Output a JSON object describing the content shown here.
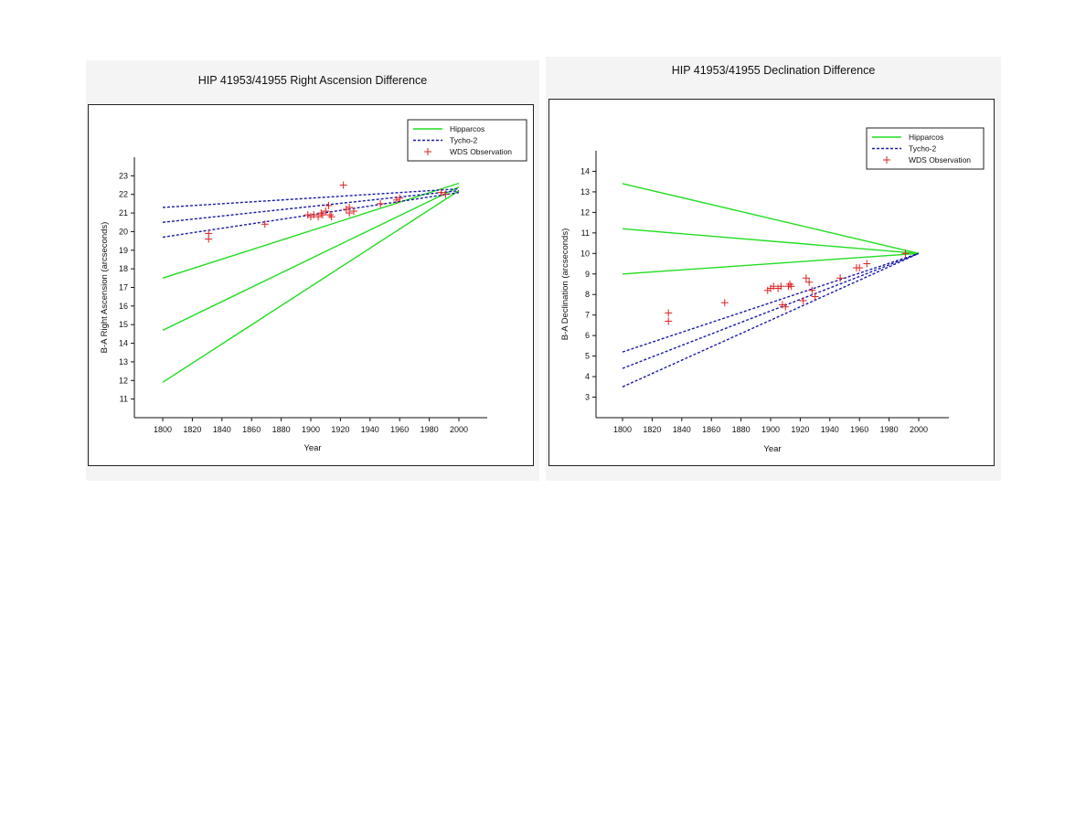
{
  "chart_data": [
    {
      "type": "line",
      "title": "HIP 41953/41955 Right Ascension Difference",
      "xlabel": "Year",
      "ylabel": "B-A Right Ascension (arcseconds)",
      "xlim": [
        1780,
        2020
      ],
      "ylim": [
        10,
        24
      ],
      "xticks": [
        1800,
        1820,
        1840,
        1860,
        1880,
        1900,
        1920,
        1940,
        1960,
        1980,
        2000
      ],
      "yticks": [
        11,
        12,
        13,
        14,
        15,
        16,
        17,
        18,
        19,
        20,
        21,
        22,
        23
      ],
      "legend": {
        "placement": "top-right",
        "entries": [
          "Hipparcos",
          "Tycho-2",
          "WDS Observation"
        ]
      },
      "grid": false,
      "series": [
        {
          "name": "Hipparcos",
          "style": "solid",
          "color": "#22dd22",
          "lines": [
            {
              "x": [
                1800,
                2000
              ],
              "y": [
                17.5,
                22.6
              ]
            },
            {
              "x": [
                1800,
                2000
              ],
              "y": [
                14.7,
                22.4
              ]
            },
            {
              "x": [
                1800,
                2000
              ],
              "y": [
                11.9,
                22.2
              ]
            }
          ]
        },
        {
          "name": "Tycho-2",
          "style": "dashed",
          "color": "#1a1aa8",
          "lines": [
            {
              "x": [
                1800,
                2000
              ],
              "y": [
                21.3,
                22.3
              ]
            },
            {
              "x": [
                1800,
                2000
              ],
              "y": [
                20.5,
                22.2
              ]
            },
            {
              "x": [
                1800,
                2000
              ],
              "y": [
                19.7,
                22.1
              ]
            }
          ]
        },
        {
          "name": "WDS Observation",
          "style": "marker",
          "color": "#dd2222",
          "points": [
            [
              1831,
              19.9
            ],
            [
              1831,
              19.6
            ],
            [
              1869,
              20.4
            ],
            [
              1898,
              20.9
            ],
            [
              1900,
              20.8
            ],
            [
              1902,
              20.9
            ],
            [
              1905,
              20.8
            ],
            [
              1907,
              21.0
            ],
            [
              1908,
              20.9
            ],
            [
              1910,
              21.1
            ],
            [
              1912,
              21.4
            ],
            [
              1913,
              20.9
            ],
            [
              1914,
              20.8
            ],
            [
              1922,
              22.5
            ],
            [
              1924,
              21.2
            ],
            [
              1926,
              21.0
            ],
            [
              1926,
              21.3
            ],
            [
              1929,
              21.1
            ],
            [
              1947,
              21.5
            ],
            [
              1958,
              21.7
            ],
            [
              1960,
              21.8
            ],
            [
              1988,
              22.1
            ],
            [
              1991,
              22.0
            ]
          ]
        }
      ]
    },
    {
      "type": "line",
      "title": "HIP 41953/41955 Declination Difference",
      "xlabel": "Year",
      "ylabel": "B-A Declination (arcseconds)",
      "xlim": [
        1780,
        2020
      ],
      "ylim": [
        2,
        15
      ],
      "xticks": [
        1800,
        1820,
        1840,
        1860,
        1880,
        1900,
        1920,
        1940,
        1960,
        1980,
        2000
      ],
      "yticks": [
        3,
        4,
        5,
        6,
        7,
        8,
        9,
        10,
        11,
        12,
        13,
        14
      ],
      "legend": {
        "placement": "top-right",
        "entries": [
          "Hipparcos",
          "Tycho-2",
          "WDS Observation"
        ]
      },
      "grid": false,
      "series": [
        {
          "name": "Hipparcos",
          "style": "solid",
          "color": "#22dd22",
          "lines": [
            {
              "x": [
                1800,
                2000
              ],
              "y": [
                13.4,
                10.0
              ]
            },
            {
              "x": [
                1800,
                2000
              ],
              "y": [
                11.2,
                10.0
              ]
            },
            {
              "x": [
                1800,
                2000
              ],
              "y": [
                9.0,
                10.0
              ]
            }
          ]
        },
        {
          "name": "Tycho-2",
          "style": "dashed",
          "color": "#1a1aa8",
          "lines": [
            {
              "x": [
                1800,
                2000
              ],
              "y": [
                5.2,
                10.0
              ]
            },
            {
              "x": [
                1800,
                2000
              ],
              "y": [
                4.4,
                10.0
              ]
            },
            {
              "x": [
                1800,
                2000
              ],
              "y": [
                3.5,
                10.0
              ]
            }
          ]
        },
        {
          "name": "WDS Observation",
          "style": "marker",
          "color": "#dd2222",
          "points": [
            [
              1831,
              7.1
            ],
            [
              1831,
              6.7
            ],
            [
              1869,
              7.6
            ],
            [
              1898,
              8.2
            ],
            [
              1900,
              8.3
            ],
            [
              1902,
              8.4
            ],
            [
              1905,
              8.3
            ],
            [
              1907,
              8.4
            ],
            [
              1908,
              7.5
            ],
            [
              1910,
              7.4
            ],
            [
              1912,
              8.4
            ],
            [
              1913,
              8.5
            ],
            [
              1914,
              8.4
            ],
            [
              1922,
              7.7
            ],
            [
              1924,
              8.8
            ],
            [
              1926,
              8.6
            ],
            [
              1928,
              8.2
            ],
            [
              1930,
              7.9
            ],
            [
              1947,
              8.8
            ],
            [
              1958,
              9.3
            ],
            [
              1960,
              9.3
            ],
            [
              1965,
              9.5
            ],
            [
              1991,
              10.0
            ]
          ]
        }
      ]
    }
  ]
}
